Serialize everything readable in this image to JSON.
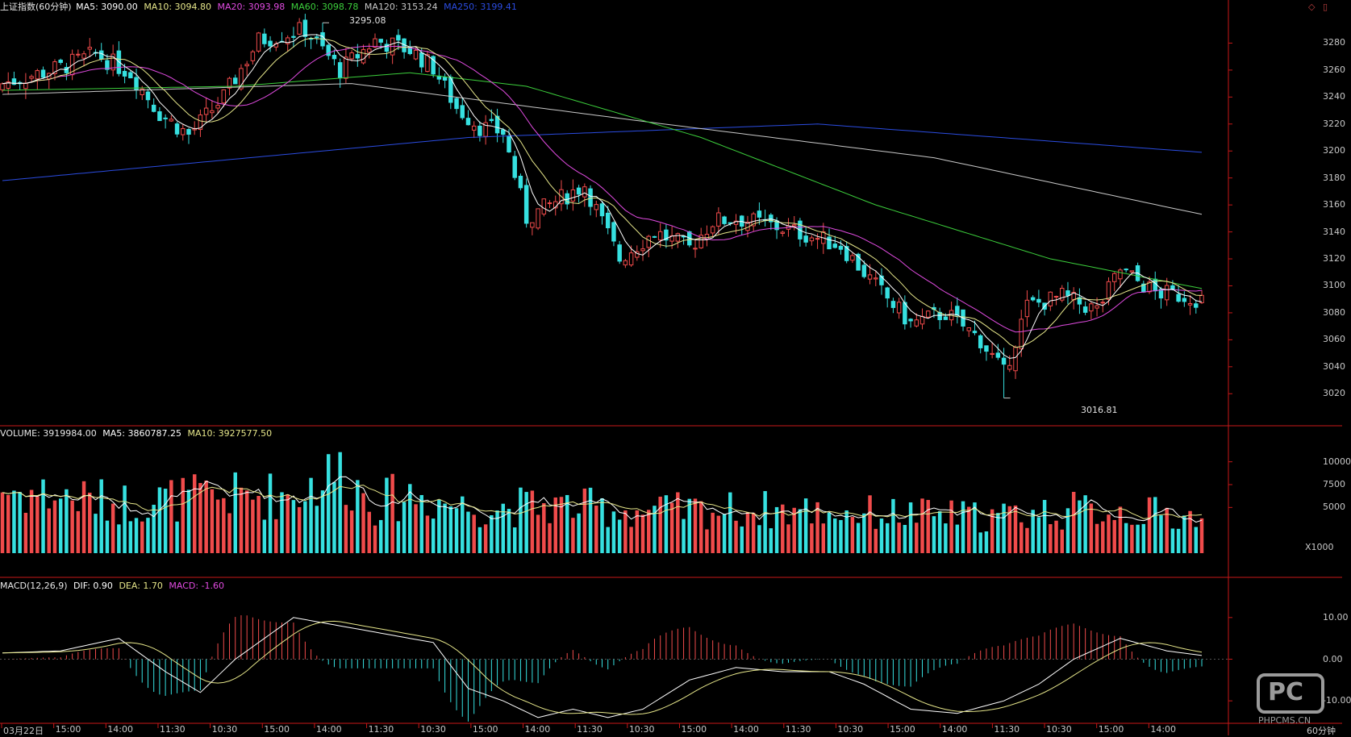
{
  "colors": {
    "up": "#f04b4b",
    "down": "#36e0e0",
    "ma5": "#ffffff",
    "ma10": "#e6e68a",
    "ma20": "#e14be1",
    "ma60": "#3ccf3c",
    "ma120": "#c8c8c8",
    "ma250": "#2b4ce0",
    "axis": "#c81818",
    "dif": "#ffffff",
    "dea": "#e6e68a"
  },
  "price_header": {
    "title": "上证指数(60分钟)",
    "ma5": "MA5: 3090.00",
    "ma10": "MA10: 3094.80",
    "ma20": "MA20: 3093.98",
    "ma60": "MA60: 3098.78",
    "ma120": "MA120: 3153.24",
    "ma250": "MA250: 3199.41"
  },
  "volume_header": {
    "volume": "VOLUME: 3919984.00",
    "ma5": "MA5: 3860787.25",
    "ma10": "MA10: 3927577.50"
  },
  "macd_header": {
    "title": "MACD(12,26,9)",
    "dif": "DIF: 0.90",
    "dea": "DEA: 1.70",
    "macd": "MACD: -1.60"
  },
  "annotations": {
    "high": "3295.08",
    "low": "3016.81"
  },
  "volume_unit": "X1000",
  "watermark": {
    "logo": "PC",
    "site": "PHPCMS.CN"
  },
  "corner_label": "60分钟",
  "price_axis": [
    "3280",
    "3260",
    "3240",
    "3220",
    "3200",
    "3180",
    "3160",
    "3140",
    "3120",
    "3100",
    "3080",
    "3060",
    "3040",
    "3020"
  ],
  "volume_axis": [
    "10000",
    "7500",
    "5000"
  ],
  "macd_axis": [
    "10.00",
    "0.00",
    "-10.00"
  ],
  "x_labels": [
    "03月22日",
    "15:00",
    "14:00",
    "11:30",
    "10:30",
    "15:00",
    "14:00",
    "11:30",
    "10:30",
    "15:00",
    "14:00",
    "11:30",
    "10:30",
    "15:00",
    "14:00",
    "11:30",
    "10:30",
    "15:00",
    "14:00",
    "11:30",
    "10:30",
    "15:00",
    "14:00"
  ],
  "chart_data": {
    "type": "candlestick",
    "price_range": [
      3010,
      3300
    ],
    "volume_range": [
      0,
      12000
    ],
    "macd_range": [
      -15,
      15
    ],
    "close_keyframes": [
      [
        0,
        3250
      ],
      [
        10,
        3262
      ],
      [
        16,
        3272
      ],
      [
        22,
        3258
      ],
      [
        27,
        3228
      ],
      [
        32,
        3212
      ],
      [
        38,
        3240
      ],
      [
        44,
        3282
      ],
      [
        52,
        3290
      ],
      [
        58,
        3260
      ],
      [
        64,
        3282
      ],
      [
        70,
        3275
      ],
      [
        74,
        3262
      ],
      [
        78,
        3232
      ],
      [
        82,
        3218
      ],
      [
        86,
        3214
      ],
      [
        90,
        3150
      ],
      [
        96,
        3165
      ],
      [
        100,
        3175
      ],
      [
        106,
        3120
      ],
      [
        112,
        3140
      ],
      [
        118,
        3128
      ],
      [
        122,
        3148
      ],
      [
        126,
        3150
      ],
      [
        132,
        3145
      ],
      [
        138,
        3138
      ],
      [
        144,
        3130
      ],
      [
        150,
        3100
      ],
      [
        156,
        3072
      ],
      [
        162,
        3080
      ],
      [
        168,
        3060
      ],
      [
        172,
        3035
      ],
      [
        176,
        3085
      ],
      [
        182,
        3092
      ],
      [
        188,
        3082
      ],
      [
        192,
        3112
      ],
      [
        198,
        3095
      ],
      [
        204,
        3092
      ],
      [
        206,
        3090
      ]
    ],
    "vol_keyframes": [
      [
        0,
        7000
      ],
      [
        20,
        5500
      ],
      [
        30,
        6000
      ],
      [
        50,
        6500
      ],
      [
        58,
        9000
      ],
      [
        64,
        5500
      ],
      [
        70,
        6500
      ],
      [
        80,
        5000
      ],
      [
        96,
        5200
      ],
      [
        110,
        4600
      ],
      [
        130,
        4800
      ],
      [
        150,
        4400
      ],
      [
        160,
        4200
      ],
      [
        170,
        4000
      ],
      [
        180,
        4600
      ],
      [
        190,
        4800
      ],
      [
        200,
        4200
      ],
      [
        206,
        3920
      ]
    ],
    "macd_keyframes": [
      [
        0,
        1.5
      ],
      [
        10,
        2
      ],
      [
        20,
        5
      ],
      [
        28,
        -3
      ],
      [
        34,
        -8
      ],
      [
        40,
        0
      ],
      [
        50,
        10
      ],
      [
        58,
        8
      ],
      [
        66,
        6
      ],
      [
        74,
        4
      ],
      [
        80,
        -7
      ],
      [
        86,
        -10
      ],
      [
        92,
        -14
      ],
      [
        98,
        -12
      ],
      [
        104,
        -14
      ],
      [
        110,
        -12
      ],
      [
        118,
        -5
      ],
      [
        126,
        -2
      ],
      [
        134,
        -3
      ],
      [
        142,
        -3
      ],
      [
        148,
        -6
      ],
      [
        156,
        -12
      ],
      [
        164,
        -13
      ],
      [
        172,
        -10
      ],
      [
        178,
        -6
      ],
      [
        184,
        0
      ],
      [
        192,
        5
      ],
      [
        200,
        2
      ],
      [
        206,
        0.9
      ]
    ],
    "ma120_keyframes": [
      [
        0,
        3242
      ],
      [
        60,
        3250
      ],
      [
        110,
        3222
      ],
      [
        160,
        3195
      ],
      [
        206,
        3153
      ]
    ],
    "ma250_keyframes": [
      [
        0,
        3178
      ],
      [
        80,
        3210
      ],
      [
        140,
        3220
      ],
      [
        206,
        3199
      ]
    ],
    "ma60_keyframes": [
      [
        0,
        3245
      ],
      [
        40,
        3248
      ],
      [
        70,
        3258
      ],
      [
        90,
        3248
      ],
      [
        120,
        3210
      ],
      [
        150,
        3160
      ],
      [
        180,
        3120
      ],
      [
        206,
        3098
      ]
    ]
  }
}
